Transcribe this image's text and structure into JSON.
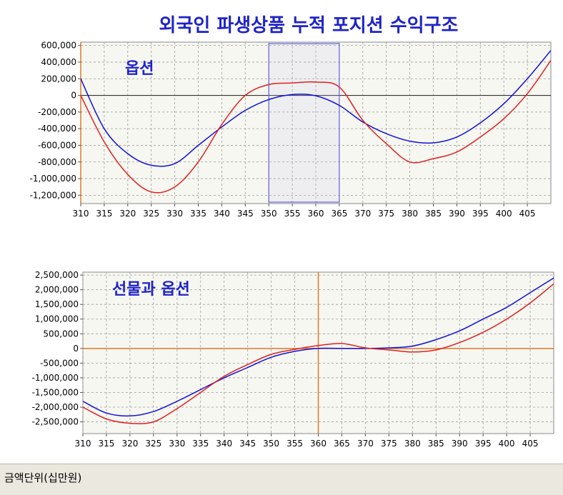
{
  "title": "외국인 파생상품 누적 포지션 수익구조",
  "footer": {
    "unit_label": "금액단위(십만원)"
  },
  "colors": {
    "blue_series": "#1010d8",
    "red_series": "#e02020",
    "axis_highlight": "#e07828",
    "plot_bg": "#f7f7f1"
  },
  "chart_data": [
    {
      "type": "line",
      "label": "옵션",
      "xlim": [
        310,
        410
      ],
      "ylim": [
        -1300000,
        640000
      ],
      "x_ticks": [
        310,
        315,
        320,
        325,
        330,
        335,
        340,
        345,
        350,
        355,
        360,
        365,
        370,
        375,
        380,
        385,
        390,
        395,
        400,
        405
      ],
      "y_ticks": [
        600000,
        400000,
        200000,
        0,
        -200000,
        -400000,
        -600000,
        -800000,
        -1000000,
        -1200000
      ],
      "y_tick_labels": [
        "600,000",
        "400,000",
        "200,000",
        "0",
        "-200,000",
        "-400,000",
        "-600,000",
        "-800,000",
        "-1,000,000",
        "-1,200,000"
      ],
      "grid": true,
      "selection_box": {
        "x_range": [
          350,
          365
        ]
      },
      "series": [
        {
          "color": "blue",
          "x": [
            310,
            315,
            320,
            325,
            330,
            335,
            340,
            345,
            350,
            355,
            360,
            365,
            370,
            375,
            380,
            385,
            390,
            395,
            400,
            405,
            410
          ],
          "y": [
            200000,
            -400000,
            -700000,
            -840000,
            -820000,
            -600000,
            -380000,
            -180000,
            -50000,
            10000,
            -5000,
            -120000,
            -320000,
            -460000,
            -550000,
            -570000,
            -500000,
            -330000,
            -100000,
            200000,
            540000
          ]
        },
        {
          "color": "red",
          "x": [
            310,
            315,
            320,
            325,
            330,
            335,
            340,
            345,
            350,
            355,
            360,
            365,
            370,
            375,
            380,
            385,
            390,
            395,
            400,
            405,
            410
          ],
          "y": [
            0,
            -560000,
            -950000,
            -1160000,
            -1100000,
            -800000,
            -350000,
            0,
            130000,
            150000,
            160000,
            100000,
            -300000,
            -580000,
            -800000,
            -760000,
            -680000,
            -500000,
            -280000,
            20000,
            420000
          ]
        }
      ]
    },
    {
      "type": "line",
      "label": "선물과 옵션",
      "xlim": [
        310,
        410
      ],
      "ylim": [
        -2900000,
        2600000
      ],
      "x_ticks": [
        310,
        315,
        320,
        325,
        330,
        335,
        340,
        345,
        350,
        355,
        360,
        365,
        370,
        375,
        380,
        385,
        390,
        395,
        400,
        405
      ],
      "y_ticks": [
        2500000,
        2000000,
        1500000,
        1000000,
        500000,
        0,
        -500000,
        -1000000,
        -1500000,
        -2000000,
        -2500000
      ],
      "y_tick_labels": [
        "2,500,000",
        "2,000,000",
        "1,500,000",
        "1,000,000",
        "500,000",
        "0",
        "-500,000",
        "-1,000,000",
        "-1,500,000",
        "-2,000,000",
        "-2,500,000"
      ],
      "grid": true,
      "crosshair_x": 360,
      "series": [
        {
          "color": "blue",
          "x": [
            310,
            315,
            320,
            325,
            330,
            335,
            340,
            345,
            350,
            355,
            360,
            365,
            370,
            375,
            380,
            385,
            390,
            395,
            400,
            405,
            410
          ],
          "y": [
            -1800000,
            -2200000,
            -2300000,
            -2150000,
            -1800000,
            -1400000,
            -1000000,
            -650000,
            -300000,
            -100000,
            0,
            0,
            0,
            20000,
            80000,
            300000,
            600000,
            1000000,
            1400000,
            1900000,
            2400000
          ]
        },
        {
          "color": "red",
          "x": [
            310,
            315,
            320,
            325,
            330,
            335,
            340,
            345,
            350,
            355,
            360,
            365,
            370,
            375,
            380,
            385,
            390,
            395,
            400,
            405,
            410
          ],
          "y": [
            -2000000,
            -2400000,
            -2550000,
            -2500000,
            -2050000,
            -1500000,
            -950000,
            -550000,
            -200000,
            -30000,
            100000,
            170000,
            20000,
            -50000,
            -120000,
            -50000,
            200000,
            550000,
            1000000,
            1550000,
            2200000
          ]
        }
      ]
    }
  ]
}
